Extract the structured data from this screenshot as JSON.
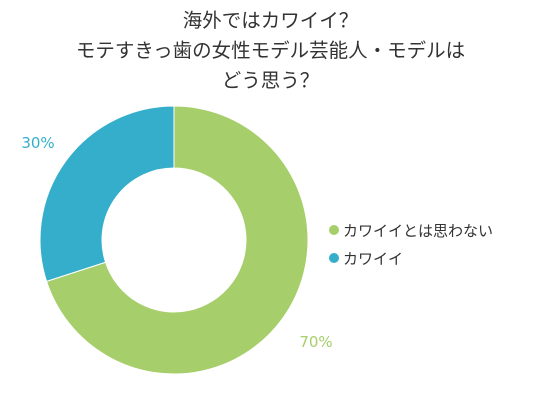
{
  "chart_data": {
    "type": "pie",
    "donut": true,
    "title": [
      "海外ではカワイイ？",
      "モテすきっ歯の女性モデル芸能人・モデルは",
      "どう思う？"
    ],
    "categories": [
      "カワイイとは思わない",
      "カワイイ"
    ],
    "values": [
      70,
      30
    ],
    "unit": "%",
    "data_labels": [
      "70%",
      "30%"
    ],
    "colors": [
      "#a6ce6a",
      "#35aecb"
    ],
    "legend_placement": "right"
  }
}
